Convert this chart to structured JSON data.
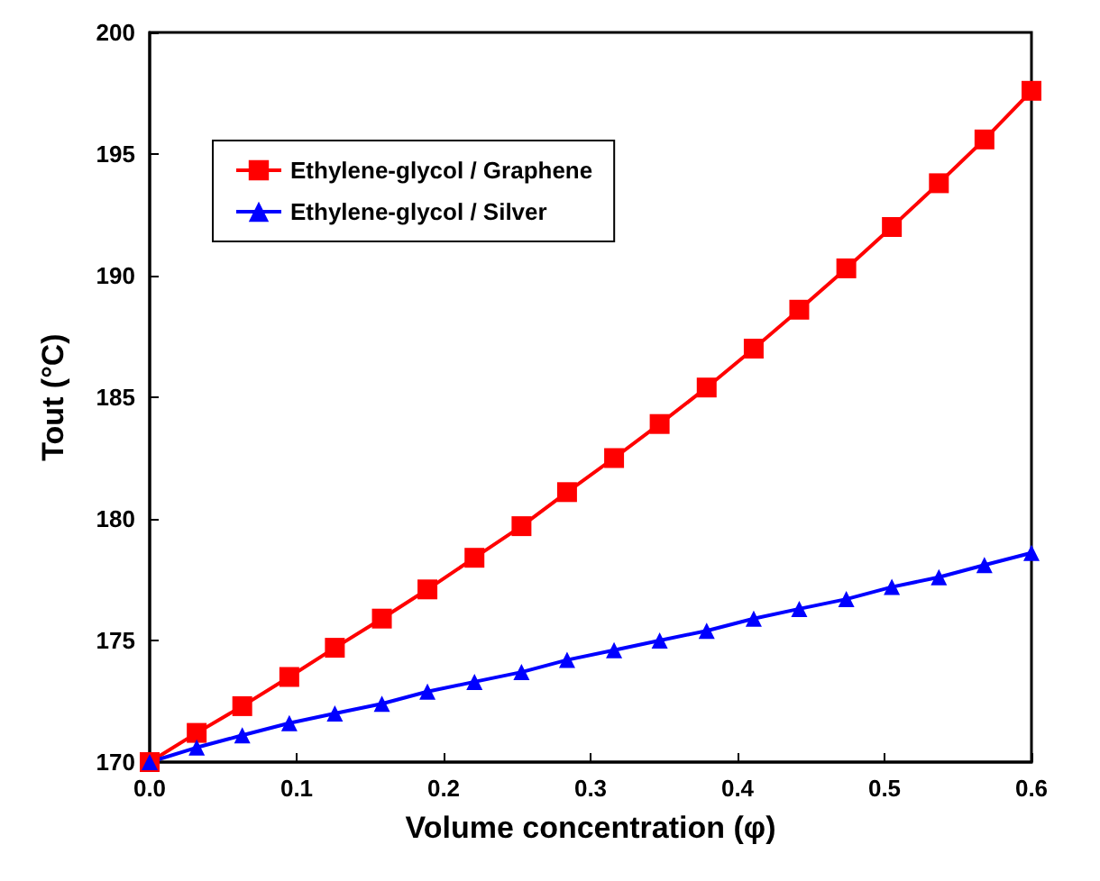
{
  "chart_data": {
    "type": "line",
    "xlabel": "Volume concentration (φ)",
    "ylabel": "Tout (°C)",
    "x": [
      0,
      0.032,
      0.063,
      0.095,
      0.126,
      0.158,
      0.189,
      0.221,
      0.253,
      0.284,
      0.316,
      0.347,
      0.379,
      0.411,
      0.442,
      0.474,
      0.505,
      0.537,
      0.568,
      0.6
    ],
    "series": [
      {
        "name": "Ethylene-glycol / Graphene",
        "color": "#ff0000",
        "marker": "square",
        "values": [
          170,
          171.2,
          172.3,
          173.5,
          174.7,
          175.9,
          177.1,
          178.4,
          179.7,
          181.1,
          182.5,
          183.9,
          185.4,
          187.0,
          188.6,
          190.3,
          192.0,
          193.8,
          195.6,
          197.6
        ]
      },
      {
        "name": "Ethylene-glycol / Silver",
        "color": "#0000ff",
        "marker": "triangle",
        "values": [
          170,
          170.6,
          171.1,
          171.6,
          172.0,
          172.4,
          172.9,
          173.3,
          173.7,
          174.2,
          174.6,
          175.0,
          175.4,
          175.9,
          176.3,
          176.7,
          177.2,
          177.6,
          178.1,
          178.6
        ]
      }
    ],
    "xlim": [
      0,
      0.6
    ],
    "xticks": [
      {
        "value": 0,
        "label": "0.0"
      },
      0.1,
      0.2,
      0.3,
      0.4,
      0.5,
      0.6
    ],
    "ylim": [
      170,
      200
    ],
    "yticks": [
      170,
      175,
      180,
      185,
      190,
      195,
      200
    ],
    "grid": false,
    "legend": "top left",
    "line_style": "solid"
  }
}
